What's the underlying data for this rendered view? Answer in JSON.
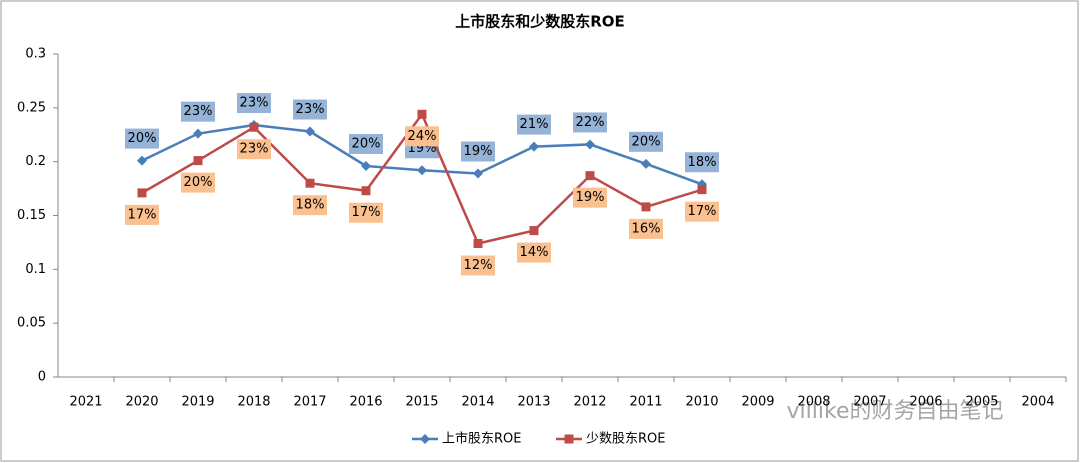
{
  "chart_data": {
    "type": "line",
    "title": "上市股东和少数股东ROE",
    "categories": [
      "2021",
      "2020",
      "2019",
      "2018",
      "2017",
      "2016",
      "2015",
      "2014",
      "2013",
      "2012",
      "2011",
      "2010",
      "2009",
      "2008",
      "2007",
      "2006",
      "2005",
      "2004"
    ],
    "series": [
      {
        "name": "上市股东ROE",
        "color": "#4a7ebb",
        "values": [
          null,
          0.201,
          0.226,
          0.234,
          0.228,
          0.196,
          0.192,
          0.189,
          0.214,
          0.216,
          0.198,
          0.179,
          null,
          null,
          null,
          null,
          null,
          null
        ],
        "value_labels": [
          null,
          "20%",
          "23%",
          "23%",
          "23%",
          "20%",
          "19%",
          "19%",
          "21%",
          "22%",
          "20%",
          "18%",
          null,
          null,
          null,
          null,
          null,
          null
        ]
      },
      {
        "name": "少数股东ROE",
        "color": "#be4b48",
        "values": [
          null,
          0.171,
          0.201,
          0.232,
          0.18,
          0.173,
          0.244,
          0.124,
          0.136,
          0.187,
          0.158,
          0.174,
          null,
          null,
          null,
          null,
          null,
          null
        ],
        "value_labels": [
          null,
          "17%",
          "20%",
          "23%",
          "18%",
          "17%",
          "24%",
          "12%",
          "14%",
          "19%",
          "16%",
          "17%",
          null,
          null,
          null,
          null,
          null,
          null
        ]
      }
    ],
    "ylim": [
      0,
      0.3
    ],
    "yticks": [
      0,
      0.05,
      0.1,
      0.15,
      0.2,
      0.25,
      0.3
    ],
    "legend": "bottom",
    "watermark": "villike的财务自由笔记"
  }
}
